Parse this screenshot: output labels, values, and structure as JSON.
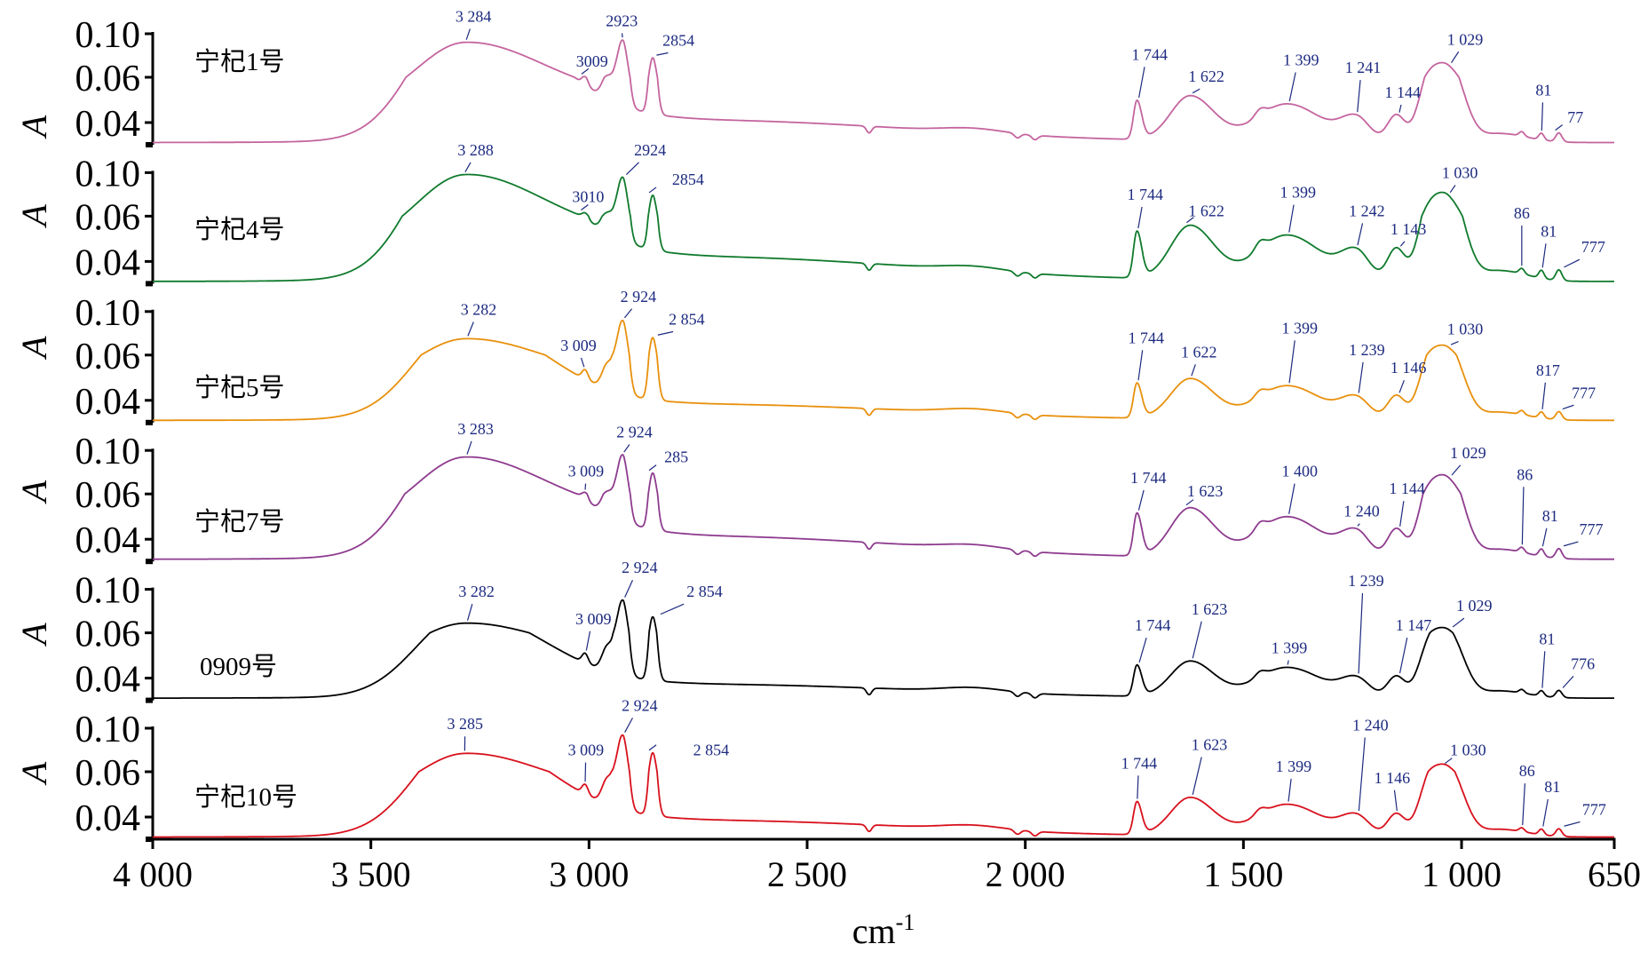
{
  "chart_data": {
    "type": "line",
    "title": "",
    "xlabel": "cm",
    "xlabel_superscript": "-1",
    "ylabel": "A",
    "xlim": [
      4000,
      650
    ],
    "x_ticks": [
      4000,
      3500,
      3000,
      2500,
      2000,
      1500,
      1000,
      650
    ],
    "x_tick_labels": [
      "4 000",
      "3 500",
      "3 000",
      "2 500",
      "2 000",
      "1 500",
      "1 000",
      "650"
    ],
    "y_ticks": [
      0.1,
      0.06,
      0.04
    ],
    "y_tick_labels": [
      "0.10",
      "0.06",
      "0.04"
    ],
    "y_axis_min": 0.03,
    "grid": false,
    "label_color": "#1c2a80",
    "baseline_absorbance": 0.031,
    "bands": [
      {
        "center": 3285,
        "s_hi": 110,
        "s_lo": 180,
        "amp": 0.058,
        "group": "oh"
      },
      {
        "center": 2750,
        "s_hi": 350,
        "s_lo": 500,
        "amp": 0.01,
        "group": "oh"
      },
      {
        "center": 3009,
        "s_hi": 7,
        "s_lo": 7,
        "amp": 0.004,
        "group": "ch"
      },
      {
        "center": 2958,
        "s_hi": 12,
        "s_lo": 12,
        "amp": 0.01,
        "group": "ch"
      },
      {
        "center": 2923,
        "s_hi": 13,
        "s_lo": 11,
        "amp": 0.0465,
        "group": "ch"
      },
      {
        "center": 2854,
        "s_hi": 8,
        "s_lo": 9,
        "amp": 0.034,
        "group": "ch"
      },
      {
        "center": 2358,
        "s_hi": 6,
        "s_lo": 6,
        "amp": -0.003,
        "group": "fixed"
      },
      {
        "center": 2120,
        "s_hi": 70,
        "s_lo": 70,
        "amp": 0.002,
        "group": "fixed"
      },
      {
        "center": 2018,
        "s_hi": 7,
        "s_lo": 7,
        "amp": -0.002,
        "group": "fixed"
      },
      {
        "center": 1978,
        "s_hi": 7,
        "s_lo": 7,
        "amp": -0.002,
        "group": "fixed"
      },
      {
        "center": 1744,
        "s_hi": 8,
        "s_lo": 11,
        "amp": 0.017,
        "group": "fp"
      },
      {
        "center": 1622,
        "s_hi": 45,
        "s_lo": 55,
        "amp": 0.02,
        "group": "fp"
      },
      {
        "center": 1462,
        "s_hi": 12,
        "s_lo": 12,
        "amp": 0.003,
        "group": "fp"
      },
      {
        "center": 1400,
        "s_hi": 70,
        "s_lo": 80,
        "amp": 0.017,
        "group": "fp"
      },
      {
        "center": 1241,
        "s_hi": 35,
        "s_lo": 30,
        "amp": 0.01,
        "group": "fp"
      },
      {
        "center": 1150,
        "s_hi": 20,
        "s_lo": 20,
        "amp": 0.012,
        "group": "fp"
      },
      {
        "center": 1075,
        "s_hi": 25,
        "s_lo": 25,
        "amp": 0.026,
        "group": "fp"
      },
      {
        "center": 1029,
        "s_hi": 28,
        "s_lo": 35,
        "amp": 0.035,
        "group": "fp"
      },
      {
        "center": 910,
        "s_hi": 40,
        "s_lo": 60,
        "amp": 0.004,
        "group": "fp"
      },
      {
        "center": 862,
        "s_hi": 6,
        "s_lo": 6,
        "amp": 0.002,
        "group": "fp"
      },
      {
        "center": 817,
        "s_hi": 6,
        "s_lo": 6,
        "amp": 0.003,
        "group": "fp"
      },
      {
        "center": 777,
        "s_hi": 7,
        "s_lo": 7,
        "amp": 0.004,
        "group": "fp"
      }
    ],
    "series": [
      {
        "name": "宁杞1号",
        "color": "#c4649e",
        "scale": {
          "oh": 1.0,
          "ch": 1.0,
          "fp": 1.0
        },
        "peaks": [
          {
            "text": "3 284",
            "peak": 3284,
            "label_x": 3265,
            "label_y": 0.111
          },
          {
            "text": "3009",
            "peak": 3009,
            "label_x": 2993,
            "label_y": 0.07
          },
          {
            "text": "2923",
            "peak": 2923,
            "label_x": 2925,
            "label_y": 0.107
          },
          {
            "text": "2854",
            "peak": 2854,
            "label_x": 2795,
            "label_y": 0.089
          },
          {
            "text": "1 744",
            "peak": 1744,
            "label_x": 1715,
            "label_y": 0.076
          },
          {
            "text": "1 622",
            "peak": 1622,
            "label_x": 1585,
            "label_y": 0.058
          },
          {
            "text": "1 399",
            "peak": 1399,
            "label_x": 1368,
            "label_y": 0.071
          },
          {
            "text": "1 241",
            "peak": 1241,
            "label_x": 1226,
            "label_y": 0.064
          },
          {
            "text": "1 144",
            "peak": 1144,
            "label_x": 1135,
            "label_y": 0.051
          },
          {
            "text": "1 029",
            "peak": 1029,
            "label_x": 992,
            "label_y": 0.09
          },
          {
            "text": "81",
            "peak": 817,
            "label_x": 812,
            "label_y": 0.052
          },
          {
            "text": "77",
            "peak": 777,
            "label_x": 739,
            "label_y": 0.04
          }
        ]
      },
      {
        "name": "宁杞4号",
        "color": "#0f7a2c",
        "scale": {
          "oh": 1.1,
          "ch": 1.0,
          "fp": 1.2
        },
        "peaks": [
          {
            "text": "3 288",
            "peak": 3288,
            "label_x": 3260,
            "label_y": 0.116
          },
          {
            "text": "3010",
            "peak": 3010,
            "label_x": 3002,
            "label_y": 0.073
          },
          {
            "text": "2924",
            "peak": 2924,
            "label_x": 2860,
            "label_y": 0.116
          },
          {
            "text": "2854",
            "peak": 2854,
            "label_x": 2773,
            "label_y": 0.089
          },
          {
            "text": "1 744",
            "peak": 1744,
            "label_x": 1725,
            "label_y": 0.075
          },
          {
            "text": "1 622",
            "peak": 1622,
            "label_x": 1585,
            "label_y": 0.06
          },
          {
            "text": "1 399",
            "peak": 1399,
            "label_x": 1375,
            "label_y": 0.077
          },
          {
            "text": "1 242",
            "peak": 1242,
            "label_x": 1217,
            "label_y": 0.06
          },
          {
            "text": "1 143",
            "peak": 1143,
            "label_x": 1122,
            "label_y": 0.052
          },
          {
            "text": "1 030",
            "peak": 1030,
            "label_x": 1004,
            "label_y": 0.095
          },
          {
            "text": "86",
            "peak": 862,
            "label_x": 862,
            "label_y": 0.059
          },
          {
            "text": "81",
            "peak": 817,
            "label_x": 800,
            "label_y": 0.051
          },
          {
            "text": "777",
            "peak": 777,
            "label_x": 698,
            "label_y": 0.044
          }
        ]
      },
      {
        "name": "宁杞5号",
        "color": "#e8900c",
        "scale": {
          "oh": 0.72,
          "ch": 1.05,
          "fp": 0.9
        },
        "peaks": [
          {
            "text": "3 282",
            "peak": 3282,
            "label_x": 3253,
            "label_y": 0.097
          },
          {
            "text": "3 009",
            "peak": 3009,
            "label_x": 3024,
            "label_y": 0.064
          },
          {
            "text": "2 924",
            "peak": 2924,
            "label_x": 2887,
            "label_y": 0.109
          },
          {
            "text": "2 854",
            "peak": 2854,
            "label_x": 2776,
            "label_y": 0.088
          },
          {
            "text": "1 744",
            "peak": 1744,
            "label_x": 1723,
            "label_y": 0.071
          },
          {
            "text": "1 622",
            "peak": 1622,
            "label_x": 1602,
            "label_y": 0.059
          },
          {
            "text": "1 399",
            "peak": 1399,
            "label_x": 1371,
            "label_y": 0.08
          },
          {
            "text": "1 239",
            "peak": 1239,
            "label_x": 1217,
            "label_y": 0.06
          },
          {
            "text": "1 146",
            "peak": 1146,
            "label_x": 1122,
            "label_y": 0.052
          },
          {
            "text": "1 030",
            "peak": 1030,
            "label_x": 992,
            "label_y": 0.079
          },
          {
            "text": "817",
            "peak": 817,
            "label_x": 802,
            "label_y": 0.051
          },
          {
            "text": "777",
            "peak": 777,
            "label_x": 720,
            "label_y": 0.041
          }
        ]
      },
      {
        "name": "宁杞7号",
        "color": "#8e3b8e",
        "scale": {
          "oh": 1.03,
          "ch": 1.03,
          "fp": 1.1
        },
        "peaks": [
          {
            "text": "3 283",
            "peak": 3283,
            "label_x": 3260,
            "label_y": 0.115
          },
          {
            "text": "3 009",
            "peak": 3009,
            "label_x": 3007,
            "label_y": 0.076
          },
          {
            "text": "2 924",
            "peak": 2924,
            "label_x": 2896,
            "label_y": 0.112
          },
          {
            "text": "285",
            "peak": 2854,
            "label_x": 2800,
            "label_y": 0.089
          },
          {
            "text": "1 744",
            "peak": 1744,
            "label_x": 1718,
            "label_y": 0.07
          },
          {
            "text": "1 623",
            "peak": 1623,
            "label_x": 1588,
            "label_y": 0.059
          },
          {
            "text": "1 400",
            "peak": 1400,
            "label_x": 1371,
            "label_y": 0.076
          },
          {
            "text": "1 240",
            "peak": 1240,
            "label_x": 1229,
            "label_y": 0.05
          },
          {
            "text": "1 144",
            "peak": 1144,
            "label_x": 1125,
            "label_y": 0.06
          },
          {
            "text": "1 029",
            "peak": 1029,
            "label_x": 985,
            "label_y": 0.093
          },
          {
            "text": "86",
            "peak": 862,
            "label_x": 855,
            "label_y": 0.073
          },
          {
            "text": "81",
            "peak": 817,
            "label_x": 797,
            "label_y": 0.048
          },
          {
            "text": "777",
            "peak": 777,
            "label_x": 703,
            "label_y": 0.042
          }
        ]
      },
      {
        "name": "0909号",
        "color": "#000000",
        "scale": {
          "oh": 0.62,
          "ch": 1.05,
          "fp": 0.8
        },
        "peaks": [
          {
            "text": "3 282",
            "peak": 3282,
            "label_x": 3258,
            "label_y": 0.093
          },
          {
            "text": "3 009",
            "peak": 3009,
            "label_x": 2990,
            "label_y": 0.068
          },
          {
            "text": "2 924",
            "peak": 2924,
            "label_x": 2884,
            "label_y": 0.115
          },
          {
            "text": "2 854",
            "peak": 2854,
            "label_x": 2735,
            "label_y": 0.093
          },
          {
            "text": "1 744",
            "peak": 1744,
            "label_x": 1708,
            "label_y": 0.062
          },
          {
            "text": "1 623",
            "peak": 1623,
            "label_x": 1578,
            "label_y": 0.077
          },
          {
            "text": "1 399",
            "peak": 1399,
            "label_x": 1395,
            "label_y": 0.051
          },
          {
            "text": "1 239",
            "peak": 1239,
            "label_x": 1219,
            "label_y": 0.103
          },
          {
            "text": "1 147",
            "peak": 1147,
            "label_x": 1110,
            "label_y": 0.062
          },
          {
            "text": "1 029",
            "peak": 1029,
            "label_x": 971,
            "label_y": 0.08
          },
          {
            "text": "81",
            "peak": 817,
            "label_x": 804,
            "label_y": 0.055
          },
          {
            "text": "776",
            "peak": 776,
            "label_x": 722,
            "label_y": 0.044
          }
        ]
      },
      {
        "name": "宁杞10号",
        "color": "#d8101c",
        "scale": {
          "oh": 0.75,
          "ch": 1.08,
          "fp": 0.85
        },
        "peaks": [
          {
            "text": "3 285",
            "peak": 3285,
            "label_x": 3284,
            "label_y": 0.099
          },
          {
            "text": "3 009",
            "peak": 3009,
            "label_x": 3007,
            "label_y": 0.075
          },
          {
            "text": "2 924",
            "peak": 2924,
            "label_x": 2884,
            "label_y": 0.116
          },
          {
            "text": "2 854",
            "peak": 2854,
            "label_x": 2720,
            "label_y": 0.075
          },
          {
            "text": "1 744",
            "peak": 1744,
            "label_x": 1739,
            "label_y": 0.063
          },
          {
            "text": "1 623",
            "peak": 1623,
            "label_x": 1578,
            "label_y": 0.08
          },
          {
            "text": "1 399",
            "peak": 1399,
            "label_x": 1385,
            "label_y": 0.06
          },
          {
            "text": "1 240",
            "peak": 1240,
            "label_x": 1209,
            "label_y": 0.098
          },
          {
            "text": "1 146",
            "peak": 1146,
            "label_x": 1159,
            "label_y": 0.055
          },
          {
            "text": "1 030",
            "peak": 1030,
            "label_x": 985,
            "label_y": 0.075
          },
          {
            "text": "86",
            "peak": 862,
            "label_x": 850,
            "label_y": 0.058
          },
          {
            "text": "81",
            "peak": 817,
            "label_x": 792,
            "label_y": 0.051
          },
          {
            "text": "777",
            "peak": 777,
            "label_x": 696,
            "label_y": 0.041
          }
        ]
      }
    ]
  }
}
